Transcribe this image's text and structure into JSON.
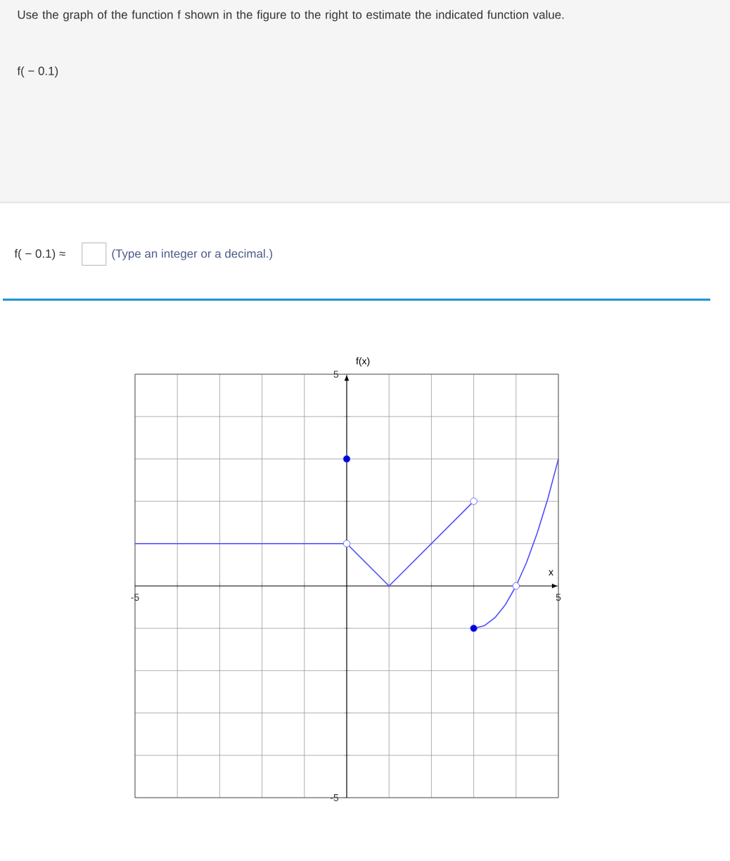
{
  "chart_data": {
    "type": "line",
    "xlabel": "x",
    "ylabel": "f(x)",
    "xlim": [
      -5,
      5
    ],
    "ylim": [
      -5,
      5
    ],
    "xticks": [
      -5,
      {
        "value": -4,
        "label": null
      },
      {
        "value": -3,
        "label": null
      },
      {
        "value": -2,
        "label": null
      },
      {
        "value": -1,
        "label": null
      },
      {
        "value": 0,
        "label": null
      },
      {
        "value": 1,
        "label": null
      },
      {
        "value": 2,
        "label": null
      },
      {
        "value": 3,
        "label": null
      },
      {
        "value": 4,
        "label": null
      },
      5
    ],
    "yticks": [
      -5,
      {
        "value": -4,
        "label": null
      },
      {
        "value": -3,
        "label": null
      },
      {
        "value": -2,
        "label": null
      },
      {
        "value": -1,
        "label": null
      },
      {
        "value": 0,
        "label": null
      },
      {
        "value": 1,
        "label": null
      },
      {
        "value": 2,
        "label": null
      },
      {
        "value": 3,
        "label": null
      },
      {
        "value": 4,
        "label": null
      },
      5
    ],
    "grid": true,
    "series": [
      {
        "color": "#4d4dff",
        "x": [
          -5,
          0
        ],
        "values": [
          1,
          1
        ]
      },
      {
        "color": "#4d4dff",
        "x": [
          0,
          1,
          3
        ],
        "values": [
          1,
          0,
          2
        ]
      },
      {
        "color": "#4d4dff",
        "x": [
          3,
          3.25,
          3.5,
          3.75,
          4,
          4.25,
          4.5,
          4.75,
          5
        ],
        "values": [
          -1,
          -0.94,
          -0.75,
          -0.44,
          0,
          0.56,
          1.25,
          2.06,
          3
        ]
      },
      {
        "type": "scatter",
        "color": "#0000dd",
        "x": [
          0,
          3
        ],
        "values": [
          3,
          -1
        ]
      },
      {
        "type": "scatter",
        "color": "#ffffff",
        "x": [
          0,
          3,
          4
        ],
        "values": [
          1,
          2,
          0
        ]
      }
    ],
    "annotations": [
      "Use the graph of the function f shown in the figure to the right to estimate the indicated function value.",
      "f( − 0.1)",
      "f( − 0.1) ≈",
      "(Type an integer or a decimal.)"
    ]
  }
}
